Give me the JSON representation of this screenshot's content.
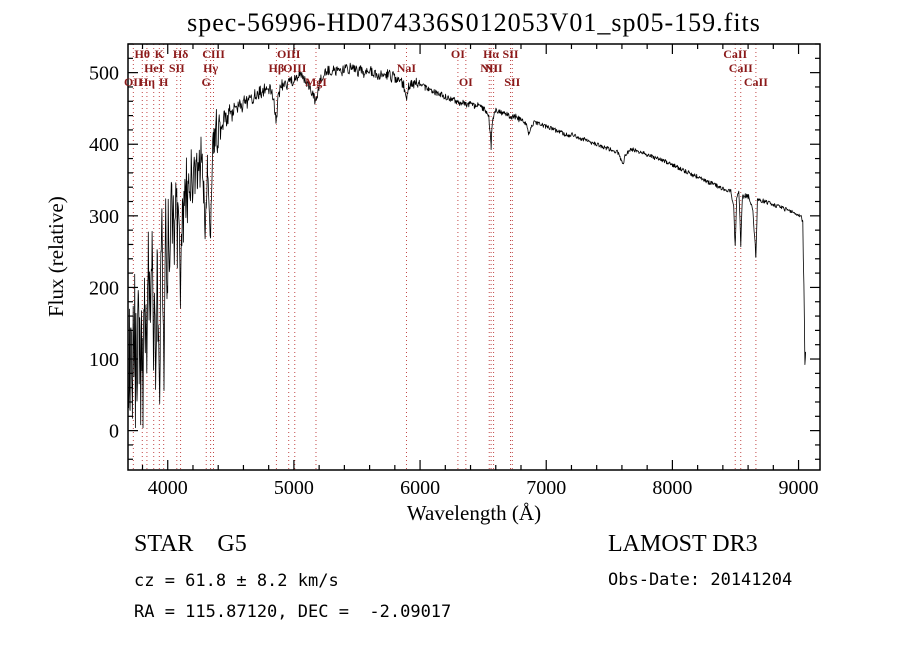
{
  "title": "spec-56996-HD074336S012053V01_sp05-159.fits",
  "annotations": {
    "class_line": "STAR    G5",
    "survey": "LAMOST DR3",
    "cz_line": "cz = 61.8 ± 8.2 km/s",
    "obsdate_line": "Obs-Date: 20141204",
    "radec_line": "RA = 115.87120, DEC =  -2.09017"
  },
  "chart_data": {
    "type": "line",
    "title": "spec-56996-HD074336S012053V01_sp05-159.fits",
    "xlabel": "Wavelength (Å)",
    "ylabel": "Flux (relative)",
    "xlim": [
      3685,
      9170
    ],
    "ylim": [
      -55,
      540
    ],
    "x_ticks": [
      4000,
      5000,
      6000,
      7000,
      8000,
      9000
    ],
    "y_ticks": [
      0,
      100,
      200,
      300,
      400,
      500
    ],
    "x_minor_step": 200,
    "y_minor_step": 20,
    "grid": false,
    "legend": false,
    "line_color": "#000000",
    "spectral_line_color": "#bb3333",
    "label_color": "#8b1a1a",
    "spectral_lines": [
      {
        "wavelength": 3727,
        "label": "OII",
        "row": 2
      },
      {
        "wavelength": 3798,
        "label": "Hθ",
        "row": 0
      },
      {
        "wavelength": 3835,
        "label": "Hη",
        "row": 2
      },
      {
        "wavelength": 3889,
        "label": "HeI",
        "row": 1
      },
      {
        "wavelength": 3933,
        "label": "K",
        "row": 0
      },
      {
        "wavelength": 3968,
        "label": "H",
        "row": 2
      },
      {
        "wavelength": 4072,
        "label": "SII",
        "row": 1
      },
      {
        "wavelength": 4102,
        "label": "Hδ",
        "row": 0
      },
      {
        "wavelength": 4305,
        "label": "G",
        "row": 2
      },
      {
        "wavelength": 4340,
        "label": "Hγ",
        "row": 1
      },
      {
        "wavelength": 4363,
        "label": "CIII",
        "row": 0
      },
      {
        "wavelength": 4861,
        "label": "Hβ",
        "row": 1
      },
      {
        "wavelength": 4959,
        "label": "OIII",
        "row": 0
      },
      {
        "wavelength": 5007,
        "label": "OIII",
        "row": 1
      },
      {
        "wavelength": 5175,
        "label": "MgI",
        "row": 2
      },
      {
        "wavelength": 5892,
        "label": "NaI",
        "row": 1
      },
      {
        "wavelength": 6300,
        "label": "OI",
        "row": 0
      },
      {
        "wavelength": 6363,
        "label": "OI",
        "row": 2
      },
      {
        "wavelength": 6548,
        "label": "NII",
        "row": 1
      },
      {
        "wavelength": 6563,
        "label": "Hα",
        "row": 0
      },
      {
        "wavelength": 6583,
        "label": "NII",
        "row": 1
      },
      {
        "wavelength": 6717,
        "label": "SII",
        "row": 0
      },
      {
        "wavelength": 6731,
        "label": "SII",
        "row": 2
      },
      {
        "wavelength": 8498,
        "label": "CaII",
        "row": 0
      },
      {
        "wavelength": 8542,
        "label": "CaII",
        "row": 1
      },
      {
        "wavelength": 8662,
        "label": "CaII",
        "row": 2
      }
    ],
    "noise_profile": [
      [
        3690,
        4150,
        45
      ],
      [
        4150,
        4420,
        24
      ],
      [
        4420,
        5000,
        9
      ],
      [
        5000,
        6000,
        7
      ],
      [
        6000,
        6800,
        4
      ],
      [
        6800,
        8480,
        3
      ],
      [
        8480,
        8700,
        4
      ],
      [
        8700,
        9030,
        3
      ],
      [
        9030,
        9060,
        6
      ]
    ],
    "spectrum_points": [
      [
        3690,
        30
      ],
      [
        3696,
        140
      ],
      [
        3702,
        20
      ],
      [
        3708,
        170
      ],
      [
        3714,
        60
      ],
      [
        3720,
        10
      ],
      [
        3726,
        150
      ],
      [
        3732,
        80
      ],
      [
        3738,
        190
      ],
      [
        3744,
        40
      ],
      [
        3750,
        160
      ],
      [
        3756,
        0
      ],
      [
        3762,
        140
      ],
      [
        3768,
        220
      ],
      [
        3774,
        90
      ],
      [
        3780,
        180
      ],
      [
        3786,
        50
      ],
      [
        3792,
        170
      ],
      [
        3798,
        100
      ],
      [
        3804,
        40
      ],
      [
        3810,
        160
      ],
      [
        3816,
        230
      ],
      [
        3822,
        120
      ],
      [
        3828,
        210
      ],
      [
        3834,
        90
      ],
      [
        3840,
        190
      ],
      [
        3846,
        260
      ],
      [
        3852,
        140
      ],
      [
        3858,
        240
      ],
      [
        3864,
        110
      ],
      [
        3870,
        220
      ],
      [
        3876,
        280
      ],
      [
        3882,
        160
      ],
      [
        3888,
        90
      ],
      [
        3894,
        200
      ],
      [
        3900,
        130
      ],
      [
        3906,
        60
      ],
      [
        3912,
        180
      ],
      [
        3918,
        240
      ],
      [
        3924,
        120
      ],
      [
        3930,
        70
      ],
      [
        3936,
        40
      ],
      [
        3942,
        170
      ],
      [
        3948,
        260
      ],
      [
        3954,
        310
      ],
      [
        3960,
        200
      ],
      [
        3966,
        120
      ],
      [
        3972,
        60
      ],
      [
        3978,
        220
      ],
      [
        3984,
        300
      ],
      [
        3990,
        240
      ],
      [
        3996,
        180
      ],
      [
        4004,
        280
      ],
      [
        4012,
        210
      ],
      [
        4020,
        300
      ],
      [
        4028,
        340
      ],
      [
        4036,
        260
      ],
      [
        4044,
        320
      ],
      [
        4052,
        230
      ],
      [
        4060,
        310
      ],
      [
        4068,
        350
      ],
      [
        4076,
        260
      ],
      [
        4084,
        330
      ],
      [
        4092,
        280
      ],
      [
        4100,
        170
      ],
      [
        4108,
        250
      ],
      [
        4116,
        320
      ],
      [
        4124,
        290
      ],
      [
        4132,
        345
      ],
      [
        4140,
        305
      ],
      [
        4148,
        355
      ],
      [
        4156,
        300
      ],
      [
        4166,
        365
      ],
      [
        4176,
        325
      ],
      [
        4186,
        375
      ],
      [
        4196,
        335
      ],
      [
        4206,
        385
      ],
      [
        4216,
        345
      ],
      [
        4226,
        395
      ],
      [
        4236,
        350
      ],
      [
        4246,
        385
      ],
      [
        4256,
        355
      ],
      [
        4266,
        395
      ],
      [
        4276,
        365
      ],
      [
        4286,
        330
      ],
      [
        4296,
        290
      ],
      [
        4306,
        335
      ],
      [
        4316,
        375
      ],
      [
        4326,
        320
      ],
      [
        4336,
        255
      ],
      [
        4346,
        330
      ],
      [
        4356,
        385
      ],
      [
        4366,
        415
      ],
      [
        4376,
        395
      ],
      [
        4386,
        425
      ],
      [
        4396,
        405
      ],
      [
        4410,
        435
      ],
      [
        4430,
        420
      ],
      [
        4450,
        442
      ],
      [
        4470,
        430
      ],
      [
        4490,
        448
      ],
      [
        4510,
        440
      ],
      [
        4530,
        455
      ],
      [
        4550,
        447
      ],
      [
        4570,
        462
      ],
      [
        4590,
        452
      ],
      [
        4610,
        466
      ],
      [
        4630,
        457
      ],
      [
        4650,
        469
      ],
      [
        4670,
        461
      ],
      [
        4690,
        472
      ],
      [
        4710,
        466
      ],
      [
        4730,
        476
      ],
      [
        4750,
        469
      ],
      [
        4770,
        479
      ],
      [
        4790,
        472
      ],
      [
        4810,
        481
      ],
      [
        4830,
        470
      ],
      [
        4850,
        448
      ],
      [
        4862,
        432
      ],
      [
        4874,
        462
      ],
      [
        4890,
        476
      ],
      [
        4910,
        484
      ],
      [
        4930,
        488
      ],
      [
        4950,
        483
      ],
      [
        4970,
        492
      ],
      [
        4990,
        487
      ],
      [
        5010,
        496
      ],
      [
        5030,
        491
      ],
      [
        5050,
        499
      ],
      [
        5070,
        493
      ],
      [
        5090,
        489
      ],
      [
        5110,
        486
      ],
      [
        5130,
        480
      ],
      [
        5150,
        470
      ],
      [
        5170,
        461
      ],
      [
        5190,
        474
      ],
      [
        5210,
        490
      ],
      [
        5230,
        496
      ],
      [
        5250,
        501
      ],
      [
        5270,
        505
      ],
      [
        5290,
        498
      ],
      [
        5310,
        506
      ],
      [
        5330,
        500
      ],
      [
        5350,
        505
      ],
      [
        5370,
        498
      ],
      [
        5390,
        504
      ],
      [
        5410,
        508
      ],
      [
        5430,
        502
      ],
      [
        5450,
        509
      ],
      [
        5470,
        503
      ],
      [
        5490,
        507
      ],
      [
        5510,
        501
      ],
      [
        5530,
        505
      ],
      [
        5550,
        499
      ],
      [
        5570,
        503
      ],
      [
        5590,
        497
      ],
      [
        5610,
        502
      ],
      [
        5630,
        496
      ],
      [
        5650,
        500
      ],
      [
        5670,
        494
      ],
      [
        5690,
        498
      ],
      [
        5710,
        492
      ],
      [
        5730,
        496
      ],
      [
        5750,
        499
      ],
      [
        5770,
        493
      ],
      [
        5790,
        496
      ],
      [
        5810,
        490
      ],
      [
        5830,
        493
      ],
      [
        5850,
        487
      ],
      [
        5870,
        482
      ],
      [
        5886,
        465
      ],
      [
        5898,
        470
      ],
      [
        5912,
        482
      ],
      [
        5930,
        487
      ],
      [
        5950,
        483
      ],
      [
        5970,
        487
      ],
      [
        5990,
        482
      ],
      [
        6010,
        485
      ],
      [
        6040,
        479
      ],
      [
        6070,
        477
      ],
      [
        6100,
        474
      ],
      [
        6130,
        472
      ],
      [
        6160,
        470
      ],
      [
        6190,
        467
      ],
      [
        6220,
        465
      ],
      [
        6250,
        463
      ],
      [
        6280,
        461
      ],
      [
        6310,
        457
      ],
      [
        6340,
        459
      ],
      [
        6370,
        455
      ],
      [
        6400,
        457
      ],
      [
        6430,
        453
      ],
      [
        6460,
        455
      ],
      [
        6490,
        451
      ],
      [
        6520,
        448
      ],
      [
        6545,
        438
      ],
      [
        6558,
        410
      ],
      [
        6563,
        396
      ],
      [
        6570,
        424
      ],
      [
        6585,
        442
      ],
      [
        6605,
        448
      ],
      [
        6635,
        445
      ],
      [
        6665,
        443
      ],
      [
        6695,
        441
      ],
      [
        6725,
        437
      ],
      [
        6755,
        439
      ],
      [
        6785,
        435
      ],
      [
        6815,
        433
      ],
      [
        6845,
        427
      ],
      [
        6862,
        415
      ],
      [
        6880,
        425
      ],
      [
        6905,
        431
      ],
      [
        6935,
        429
      ],
      [
        6965,
        427
      ],
      [
        6995,
        425
      ],
      [
        7025,
        423
      ],
      [
        7055,
        421
      ],
      [
        7085,
        419
      ],
      [
        7115,
        417
      ],
      [
        7145,
        414
      ],
      [
        7175,
        412
      ],
      [
        7205,
        415
      ],
      [
        7235,
        411
      ],
      [
        7265,
        409
      ],
      [
        7295,
        407
      ],
      [
        7325,
        405
      ],
      [
        7355,
        403
      ],
      [
        7385,
        401
      ],
      [
        7415,
        399
      ],
      [
        7445,
        397
      ],
      [
        7475,
        395
      ],
      [
        7505,
        393
      ],
      [
        7535,
        391
      ],
      [
        7565,
        389
      ],
      [
        7592,
        379
      ],
      [
        7608,
        371
      ],
      [
        7625,
        384
      ],
      [
        7655,
        391
      ],
      [
        7685,
        393
      ],
      [
        7715,
        391
      ],
      [
        7745,
        389
      ],
      [
        7775,
        387
      ],
      [
        7805,
        385
      ],
      [
        7835,
        383
      ],
      [
        7865,
        381
      ],
      [
        7895,
        379
      ],
      [
        7925,
        377
      ],
      [
        7955,
        375
      ],
      [
        7985,
        373
      ],
      [
        8015,
        370
      ],
      [
        8045,
        367
      ],
      [
        8075,
        365
      ],
      [
        8105,
        362
      ],
      [
        8135,
        360
      ],
      [
        8165,
        357
      ],
      [
        8195,
        355
      ],
      [
        8225,
        352
      ],
      [
        8255,
        350
      ],
      [
        8285,
        347
      ],
      [
        8315,
        345
      ],
      [
        8345,
        343
      ],
      [
        8375,
        340
      ],
      [
        8405,
        338
      ],
      [
        8435,
        336
      ],
      [
        8465,
        334
      ],
      [
        8486,
        310
      ],
      [
        8498,
        256
      ],
      [
        8510,
        328
      ],
      [
        8528,
        331
      ],
      [
        8542,
        260
      ],
      [
        8554,
        326
      ],
      [
        8580,
        329
      ],
      [
        8610,
        326
      ],
      [
        8640,
        305
      ],
      [
        8662,
        240
      ],
      [
        8674,
        320
      ],
      [
        8700,
        322
      ],
      [
        8730,
        320
      ],
      [
        8760,
        318
      ],
      [
        8790,
        316
      ],
      [
        8820,
        314
      ],
      [
        8850,
        312
      ],
      [
        8880,
        310
      ],
      [
        8910,
        308
      ],
      [
        8940,
        306
      ],
      [
        8970,
        304
      ],
      [
        9000,
        302
      ],
      [
        9020,
        298
      ],
      [
        9034,
        292
      ],
      [
        9042,
        200
      ],
      [
        9050,
        95
      ],
      [
        9056,
        110
      ]
    ]
  }
}
